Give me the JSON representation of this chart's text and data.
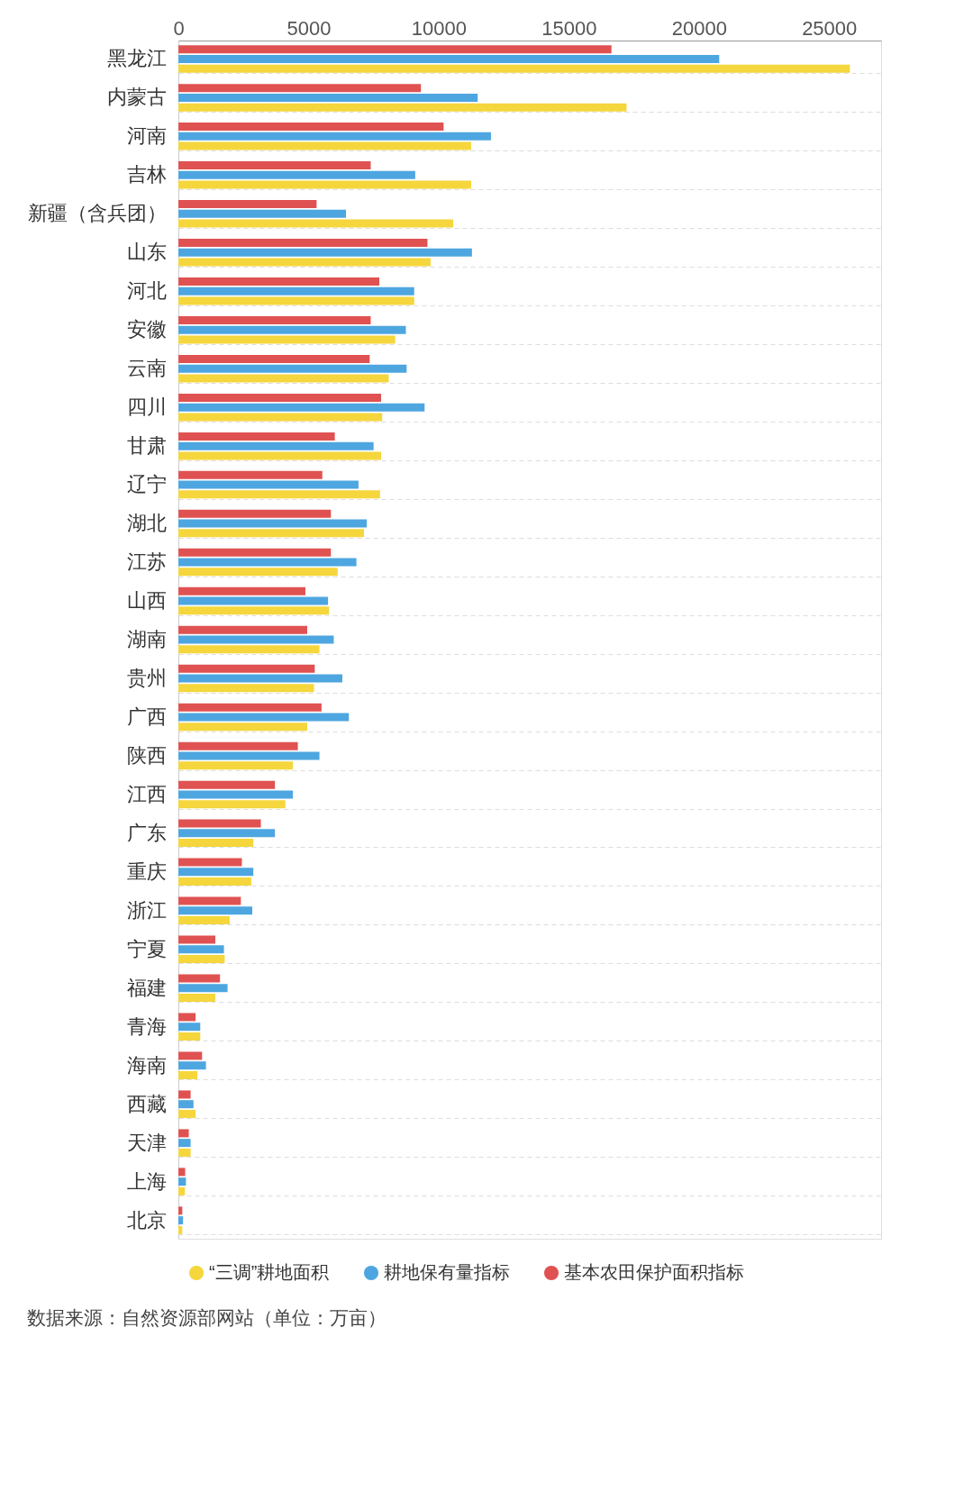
{
  "chart_data": {
    "type": "bar",
    "orientation": "horizontal",
    "categories": [
      "黑龙江",
      "内蒙古",
      "河南",
      "吉林",
      "新疆（含兵团）",
      "山东",
      "河北",
      "安徽",
      "云南",
      "四川",
      "甘肃",
      "辽宁",
      "湖北",
      "江苏",
      "山西",
      "湖南",
      "贵州",
      "广西",
      "陕西",
      "江西",
      "广东",
      "重庆",
      "浙江",
      "宁夏",
      "福建",
      "青海",
      "海南",
      "西藏",
      "天津",
      "上海",
      "北京"
    ],
    "series": [
      {
        "name": "“三调”耕地面积",
        "color": "#f5d63c",
        "values": [
          25800,
          17220,
          11250,
          11250,
          10560,
          9690,
          9060,
          8330,
          8080,
          7830,
          7790,
          7750,
          7130,
          6120,
          5790,
          5420,
          5210,
          4950,
          4400,
          4110,
          2880,
          2800,
          1970,
          1780,
          1420,
          840,
          730,
          660,
          470,
          250,
          150
        ]
      },
      {
        "name": "耕地保有量指标",
        "color": "#4ea6e0",
        "values": [
          20780,
          11500,
          12010,
          9100,
          6440,
          11280,
          9060,
          8740,
          8770,
          9460,
          7500,
          6920,
          7240,
          6840,
          5750,
          5970,
          6300,
          6550,
          5420,
          4400,
          3710,
          2880,
          2840,
          1750,
          1890,
          840,
          1060,
          580,
          470,
          290,
          180
        ]
      },
      {
        "name": "基本农田保护面积指标",
        "color": "#e05252",
        "values": [
          16640,
          9320,
          10190,
          7390,
          5310,
          9570,
          7720,
          7390,
          7350,
          7790,
          6010,
          5530,
          5860,
          5860,
          4880,
          4950,
          5240,
          5500,
          4590,
          3710,
          3170,
          2440,
          2400,
          1420,
          1600,
          660,
          910,
          470,
          400,
          260,
          150
        ]
      }
    ],
    "xlim": [
      0,
      27000
    ],
    "xticks": [
      0,
      5000,
      10000,
      15000,
      20000,
      25000
    ],
    "grid": "y",
    "legend": "bottom",
    "annotations": [
      "数据来源：自然资源部网站（单位：万亩）"
    ]
  }
}
